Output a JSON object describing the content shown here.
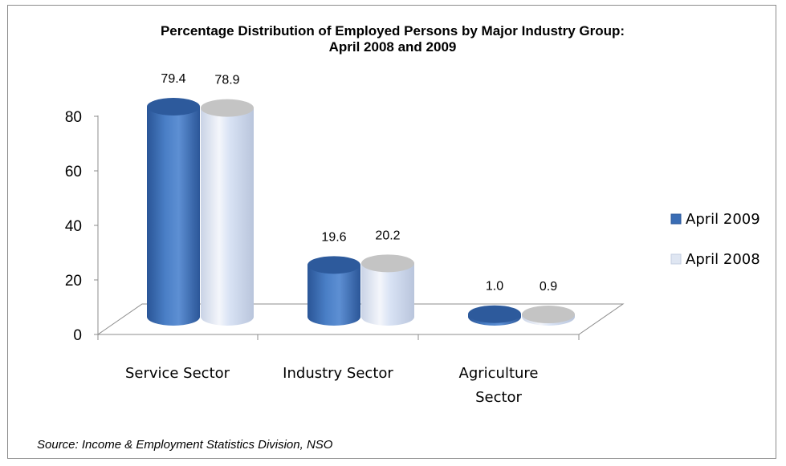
{
  "chart_data": {
    "type": "bar",
    "title": "Percentage Distribution of Employed Persons by Major Industry Group:",
    "subtitle": "April 2008 and 2009",
    "categories": [
      "Service Sector",
      "Industry Sector",
      "Agriculture Sector"
    ],
    "category_lines": [
      [
        "Service Sector"
      ],
      [
        "Industry Sector"
      ],
      [
        "Agriculture",
        "Sector"
      ]
    ],
    "series": [
      {
        "name": "April 2009",
        "values": [
          79.4,
          19.6,
          1.0
        ],
        "value_labels": [
          "79.4",
          "19.6",
          "1.0"
        ],
        "color": "#3a6db5"
      },
      {
        "name": "April 2008",
        "values": [
          78.9,
          20.2,
          0.9
        ],
        "value_labels": [
          "78.9",
          "20.2",
          "0.9"
        ],
        "color": "#dfe6f2"
      }
    ],
    "yticks": [
      "0",
      "20",
      "40",
      "60",
      "80"
    ],
    "ytick_values": [
      0,
      20,
      40,
      60,
      80
    ],
    "ylim": [
      0,
      80
    ],
    "legend_position": "right",
    "style": "3d-cylinder"
  },
  "source": "Source: Income & Employment Statistics Division, NSO"
}
